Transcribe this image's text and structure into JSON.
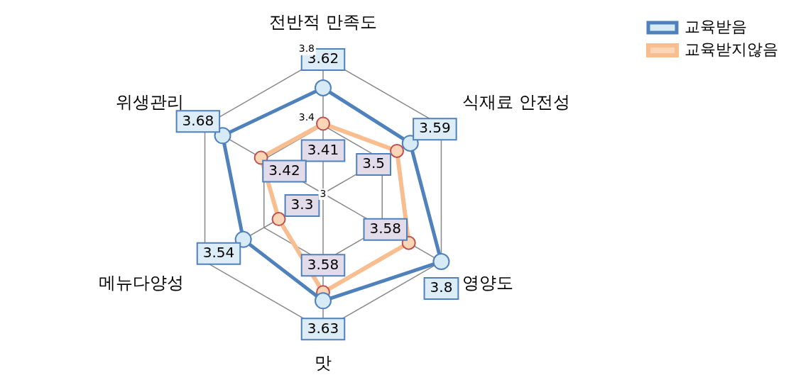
{
  "chart_data": {
    "type": "radar",
    "categories": [
      "전반적 만족도",
      "식재료 안전성",
      "영양도",
      "맛",
      "메뉴다양성",
      "위생관리"
    ],
    "series": [
      {
        "name": "교육받음",
        "color": "#4f81bd",
        "values": [
          3.62,
          3.59,
          3.8,
          3.63,
          3.54,
          3.68
        ]
      },
      {
        "name": "교육받지않음",
        "color": "#f9be8f",
        "values": [
          3.41,
          3.5,
          3.58,
          3.58,
          3.3,
          3.42
        ]
      }
    ],
    "ylim": [
      3,
      3.8
    ],
    "yticks": [
      3,
      3.4,
      3.8
    ],
    "grid": true,
    "legend": "top right",
    "marker": "circle",
    "data_labels": true
  }
}
